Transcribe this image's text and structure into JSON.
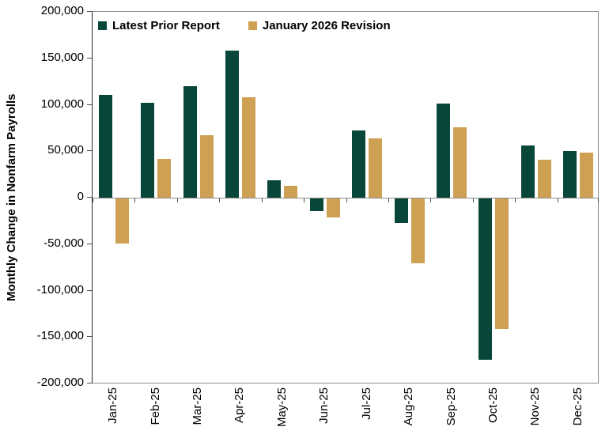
{
  "chart_data": {
    "type": "bar",
    "title": "",
    "xlabel": "",
    "ylabel": "Monthly Change in Nonfarm Payrolls",
    "ylim": [
      -200000,
      200000
    ],
    "ytick_step": 50000,
    "ytick_labels": [
      "200,000",
      "150,000",
      "100,000",
      "50,000",
      "0",
      "-50,000",
      "-100,000",
      "-150,000",
      "-200,000"
    ],
    "categories": [
      "Jan-25",
      "Feb-25",
      "Mar-25",
      "Apr-25",
      "May-25",
      "Jun-25",
      "Jul-25",
      "Aug-25",
      "Sep-25",
      "Oct-25",
      "Nov-25",
      "Dec-25"
    ],
    "series": [
      {
        "name": "Latest Prior Report",
        "color": "#09463A",
        "values": [
          110000,
          102000,
          120000,
          158000,
          19000,
          -14000,
          72000,
          -26000,
          101000,
          -173000,
          56000,
          50000
        ]
      },
      {
        "name": "January 2026 Revision",
        "color": "#CDA053",
        "values": [
          -48000,
          42000,
          67000,
          108000,
          13000,
          -20000,
          64000,
          -70000,
          76000,
          -140000,
          41000,
          48000
        ]
      }
    ],
    "grid": false,
    "legend_position": "top-left-inside",
    "axis_color": "#8c8c8c"
  }
}
